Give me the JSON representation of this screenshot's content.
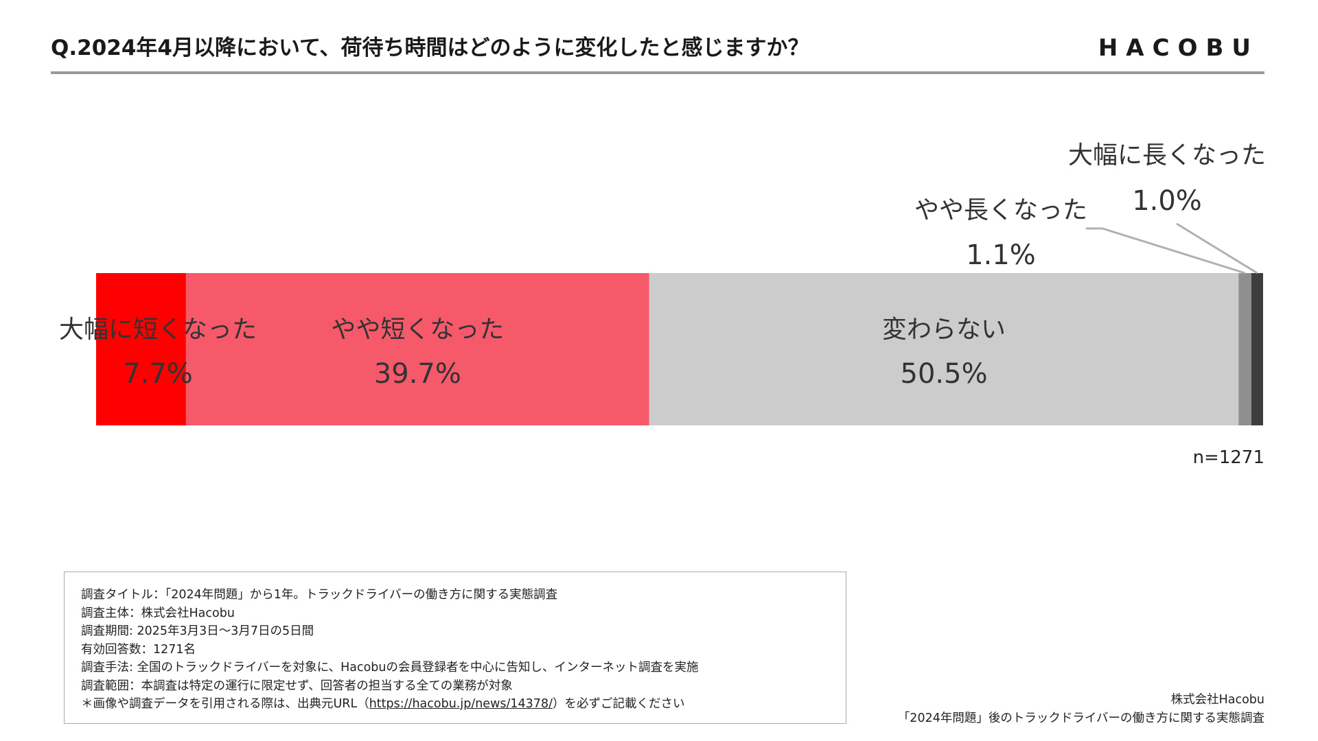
{
  "header": {
    "question": "Q.2024年4月以降において、荷待ち時間はどのように変化したと感じますか？",
    "logo": "HACOBU"
  },
  "chart_data": {
    "type": "bar",
    "orientation": "horizontal-stacked-100",
    "categories": [
      "大幅に短くなった",
      "やや短くなった",
      "変わらない",
      "やや長くなった",
      "大幅に長くなった"
    ],
    "values": [
      7.7,
      39.7,
      50.5,
      1.1,
      1.0
    ],
    "value_labels": [
      "7.7%",
      "39.7%",
      "50.5%",
      "1.1%",
      "1.0%"
    ],
    "colors": [
      "#ff0000",
      "#f5596a",
      "#cccccc",
      "#8f8f8f",
      "#3d3d3d"
    ],
    "n_label": "n=1271"
  },
  "notes": {
    "lines": [
      "調査タイトル：「2024年問題」から1年。トラックドライバーの働き方に関する実態調査",
      "調査主体：株式会社Hacobu",
      "調査期間: 2025年3月3日〜3月7日の5日間",
      "有効回答数：1271名",
      "調査手法: 全国のトラックドライバーを対象に、Hacobuの会員登録者を中心に告知し、インターネット調査を実施",
      "調査範囲：本調査は特定の運行に限定せず、回答者の担当する全ての業務が対象"
    ],
    "citation_prefix": "＊画像や調査データを引用される際は、出典元URL（",
    "citation_url": "https://hacobu.jp/news/14378/",
    "citation_suffix": "）を必ずご記載ください"
  },
  "credit": {
    "company": "株式会社Hacobu",
    "report": "「2024年問題」後のトラックドライバーの働き方に関する実態調査"
  }
}
